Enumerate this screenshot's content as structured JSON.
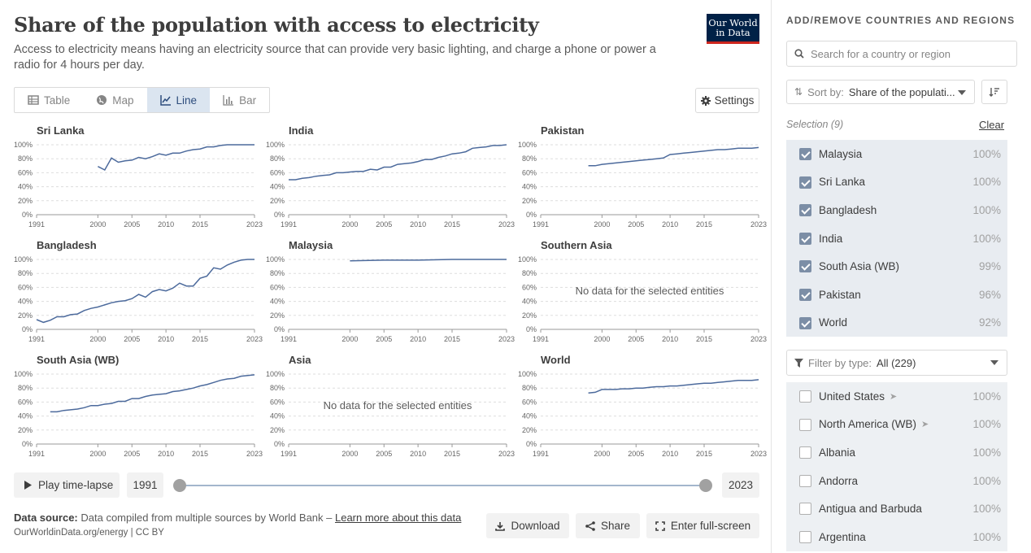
{
  "header": {
    "title": "Share of the population with access to electricity",
    "subtitle": "Access to electricity means having an electricity source that can provide very basic lighting, and charge a phone or power a radio for 4 hours per day.",
    "logo_line1": "Our World",
    "logo_line2": "in Data"
  },
  "tabs": [
    {
      "label": "Table",
      "icon": "table-icon"
    },
    {
      "label": "Map",
      "icon": "globe-icon"
    },
    {
      "label": "Line",
      "icon": "line-chart-icon",
      "active": true
    },
    {
      "label": "Bar",
      "icon": "bar-chart-icon"
    }
  ],
  "settings_label": "Settings",
  "no_data_text": "No data for the selected entities",
  "timeline": {
    "play_label": "Play time-lapse",
    "start_year": "1991",
    "end_year": "2023"
  },
  "footer": {
    "source_label": "Data source:",
    "source_text": "Data compiled from multiple sources by World Bank – ",
    "source_link": "Learn more about this data",
    "license": "OurWorldinData.org/energy | CC BY",
    "download_label": "Download",
    "share_label": "Share",
    "fullscreen_label": "Enter full-screen"
  },
  "panel": {
    "title": "ADD/REMOVE COUNTRIES AND REGIONS",
    "search_placeholder": "Search for a country or region",
    "sort_prefix": "Sort by:",
    "sort_value": "Share of the populati...",
    "selection_label": "Selection (9)",
    "clear_label": "Clear",
    "selected": [
      {
        "name": "Malaysia",
        "value": "100%"
      },
      {
        "name": "Sri Lanka",
        "value": "100%"
      },
      {
        "name": "Bangladesh",
        "value": "100%"
      },
      {
        "name": "India",
        "value": "100%"
      },
      {
        "name": "South Asia (WB)",
        "value": "99%"
      },
      {
        "name": "Pakistan",
        "value": "96%"
      },
      {
        "name": "World",
        "value": "92%"
      }
    ],
    "filter_prefix": "Filter by type:",
    "filter_value": "All (229)",
    "unselected": [
      {
        "name": "United States",
        "value": "100%",
        "arrow": true
      },
      {
        "name": "North America (WB)",
        "value": "100%",
        "arrow": true
      },
      {
        "name": "Albania",
        "value": "100%"
      },
      {
        "name": "Andorra",
        "value": "100%"
      },
      {
        "name": "Antigua and Barbuda",
        "value": "100%"
      },
      {
        "name": "Argentina",
        "value": "100%"
      }
    ]
  },
  "chart_data": {
    "type": "line",
    "y_ticks": [
      "0%",
      "20%",
      "40%",
      "60%",
      "80%",
      "100%"
    ],
    "x_ticks": [
      "1991",
      "2000",
      "2005",
      "2010",
      "2015",
      "2023"
    ],
    "xlim": [
      1991,
      2023
    ],
    "ylim": [
      0,
      100
    ],
    "line_color": "#4c6a9c",
    "panels": [
      {
        "name": "Sri Lanka",
        "x": [
          2000,
          2001,
          2002,
          2003,
          2004,
          2005,
          2006,
          2007,
          2008,
          2009,
          2010,
          2011,
          2012,
          2013,
          2014,
          2015,
          2016,
          2017,
          2018,
          2019,
          2020,
          2021,
          2022,
          2023
        ],
        "y": [
          69,
          64,
          81,
          75,
          77,
          78,
          82,
          80,
          83,
          87,
          85,
          88,
          88,
          91,
          93,
          94,
          97,
          97,
          99,
          100,
          100,
          100,
          100,
          100
        ]
      },
      {
        "name": "India",
        "x": [
          1991,
          1992,
          1993,
          1994,
          1995,
          1996,
          1997,
          1998,
          1999,
          2000,
          2001,
          2002,
          2003,
          2004,
          2005,
          2006,
          2007,
          2008,
          2009,
          2010,
          2011,
          2012,
          2013,
          2014,
          2015,
          2016,
          2017,
          2018,
          2019,
          2020,
          2021,
          2022,
          2023
        ],
        "y": [
          50,
          50,
          52,
          53,
          55,
          56,
          57,
          60,
          60,
          61,
          62,
          62,
          65,
          64,
          68,
          68,
          72,
          73,
          74,
          76,
          79,
          79,
          82,
          84,
          87,
          88,
          90,
          95,
          96,
          97,
          99,
          99,
          100
        ]
      },
      {
        "name": "Pakistan",
        "x": [
          1998,
          1999,
          2000,
          2001,
          2002,
          2003,
          2004,
          2005,
          2006,
          2007,
          2008,
          2009,
          2010,
          2011,
          2012,
          2013,
          2014,
          2015,
          2016,
          2017,
          2018,
          2019,
          2020,
          2021,
          2022,
          2023
        ],
        "y": [
          70,
          70,
          72,
          73,
          74,
          75,
          76,
          77,
          78,
          79,
          80,
          81,
          86,
          87,
          88,
          89,
          90,
          91,
          92,
          93,
          93,
          94,
          95,
          95,
          95,
          96
        ]
      },
      {
        "name": "Bangladesh",
        "x": [
          1991,
          1992,
          1993,
          1994,
          1995,
          1996,
          1997,
          1998,
          1999,
          2000,
          2001,
          2002,
          2003,
          2004,
          2005,
          2006,
          2007,
          2008,
          2009,
          2010,
          2011,
          2012,
          2013,
          2014,
          2015,
          2016,
          2017,
          2018,
          2019,
          2020,
          2021,
          2022,
          2023
        ],
        "y": [
          14,
          10,
          13,
          18,
          18,
          21,
          22,
          27,
          30,
          32,
          35,
          38,
          40,
          41,
          44,
          50,
          46,
          54,
          57,
          55,
          59,
          66,
          62,
          62,
          73,
          76,
          88,
          86,
          92,
          96,
          99,
          100,
          100
        ]
      },
      {
        "name": "Malaysia",
        "x": [
          2000,
          2005,
          2010,
          2015,
          2020,
          2023
        ],
        "y": [
          98,
          99,
          99,
          100,
          100,
          100
        ]
      },
      {
        "name": "Southern Asia",
        "x": [],
        "y": [],
        "no_data": true
      },
      {
        "name": "South Asia (WB)",
        "x": [
          1993,
          1994,
          1995,
          1996,
          1997,
          1998,
          1999,
          2000,
          2001,
          2002,
          2003,
          2004,
          2005,
          2006,
          2007,
          2008,
          2009,
          2010,
          2011,
          2012,
          2013,
          2014,
          2015,
          2016,
          2017,
          2018,
          2019,
          2020,
          2021,
          2022,
          2023
        ],
        "y": [
          46,
          46,
          48,
          49,
          50,
          52,
          55,
          55,
          57,
          58,
          61,
          61,
          65,
          65,
          68,
          70,
          71,
          72,
          75,
          76,
          78,
          80,
          83,
          85,
          88,
          91,
          93,
          94,
          97,
          98,
          99
        ]
      },
      {
        "name": "Asia",
        "x": [],
        "y": [],
        "no_data": true
      },
      {
        "name": "World",
        "x": [
          1998,
          1999,
          2000,
          2001,
          2002,
          2003,
          2004,
          2005,
          2006,
          2007,
          2008,
          2009,
          2010,
          2011,
          2012,
          2013,
          2014,
          2015,
          2016,
          2017,
          2018,
          2019,
          2020,
          2021,
          2022,
          2023
        ],
        "y": [
          73,
          74,
          78,
          78,
          78,
          79,
          79,
          80,
          80,
          81,
          82,
          82,
          83,
          83,
          84,
          85,
          86,
          87,
          87,
          88,
          89,
          90,
          91,
          91,
          91,
          92
        ]
      }
    ]
  }
}
